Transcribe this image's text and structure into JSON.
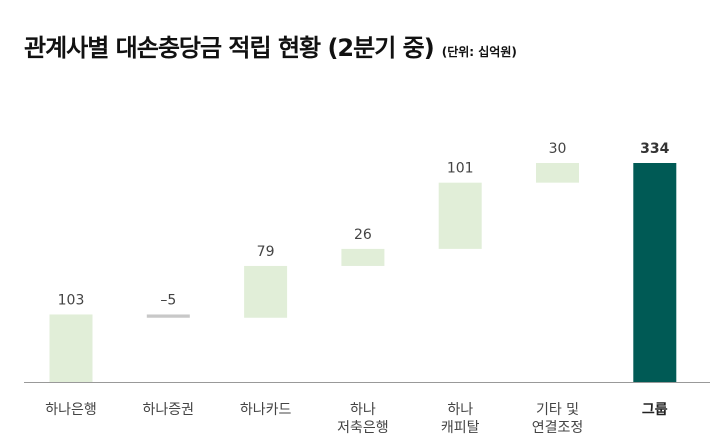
{
  "title": "관계사별 대손충당금 적립 현황 (2분기 중)",
  "unit": "(단위: 십억원)",
  "colors": {
    "positive": "#E1EED8",
    "negative": "#C8C8C8",
    "total": "#005A55",
    "axis": "#999999",
    "text": "#444444"
  },
  "chart_data": {
    "type": "bar",
    "subtype": "waterfall",
    "categories": [
      [
        "하나은행"
      ],
      [
        "하나증권"
      ],
      [
        "하나카드"
      ],
      [
        "하나",
        "저축은행"
      ],
      [
        "하나",
        "캐피탈"
      ],
      [
        "기타 및",
        "연결조정"
      ],
      [
        "그룹"
      ]
    ],
    "values": [
      103,
      -5,
      79,
      26,
      101,
      30,
      334
    ],
    "value_labels": [
      "103",
      "–5",
      "79",
      "26",
      "101",
      "30",
      "334"
    ],
    "total_index": 6,
    "ylim": [
      0,
      340
    ],
    "grid": false,
    "legend": "none"
  }
}
